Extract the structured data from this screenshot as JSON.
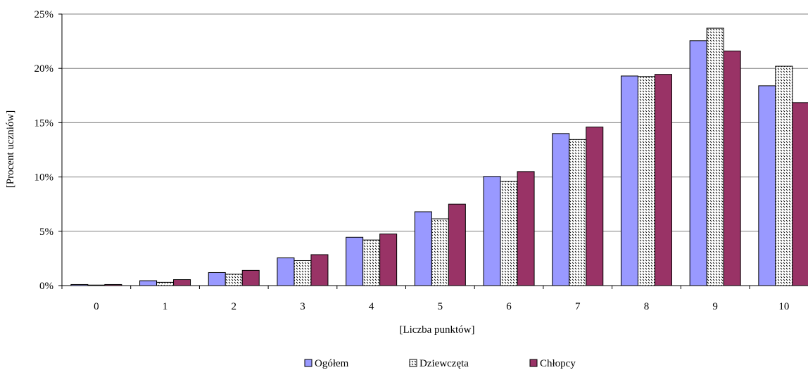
{
  "chart_data": {
    "type": "bar",
    "xlabel": "[Liczba punktów]",
    "ylabel": "[Procent uczniów]",
    "ylim": [
      0,
      25
    ],
    "yticks": [
      0,
      5,
      10,
      15,
      20,
      25
    ],
    "ytick_labels": [
      "0%",
      "5%",
      "10%",
      "15%",
      "20%",
      "25%"
    ],
    "categories": [
      "0",
      "1",
      "2",
      "3",
      "4",
      "5",
      "6",
      "7",
      "8",
      "9",
      "10"
    ],
    "grid": "horizontal",
    "legend_position": "bottom",
    "series": [
      {
        "name": "Ogółem",
        "color": "#9999ff",
        "pattern": "solid",
        "values": [
          0.1,
          0.45,
          1.2,
          2.55,
          4.45,
          6.8,
          10.05,
          14.0,
          19.3,
          22.55,
          18.4
        ]
      },
      {
        "name": "Dziewczęta",
        "color": "#ffffff",
        "pattern": "dotted",
        "values": [
          0.05,
          0.3,
          1.05,
          2.3,
          4.2,
          6.15,
          9.6,
          13.45,
          19.25,
          23.7,
          20.2
        ]
      },
      {
        "name": "Chłopcy",
        "color": "#993366",
        "pattern": "solid",
        "values": [
          0.1,
          0.55,
          1.4,
          2.85,
          4.75,
          7.5,
          10.5,
          14.6,
          19.45,
          21.6,
          16.85
        ]
      }
    ]
  }
}
